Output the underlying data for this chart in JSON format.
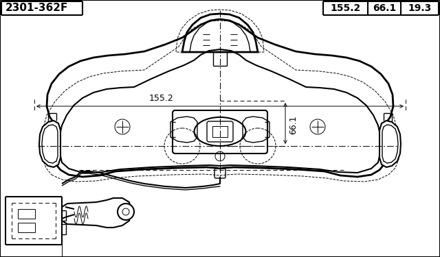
{
  "title_left": "2301-362F",
  "dims": [
    "155.2",
    "66.1",
    "19.3"
  ],
  "dim_155": "155.2",
  "dim_66": "66.1",
  "bg_color": "#ffffff",
  "line_color": "#000000"
}
